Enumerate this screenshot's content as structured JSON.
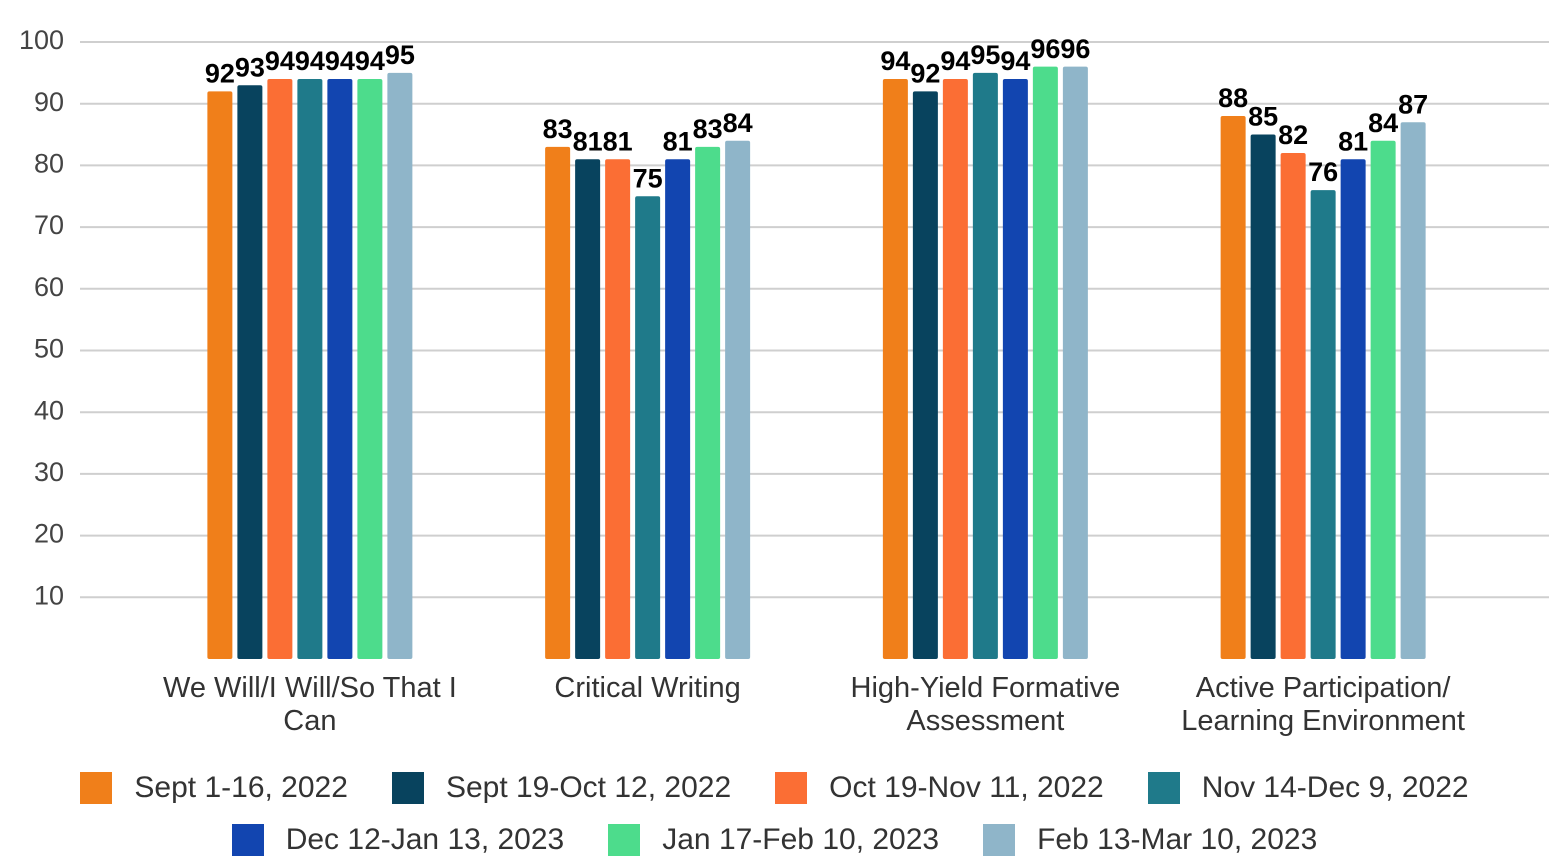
{
  "chart_data": {
    "type": "bar",
    "categories": [
      "We Will/I Will/So That I Can",
      "Critical Writing",
      "High-Yield Formative Assessment",
      "Active Participation/ Learning Environment"
    ],
    "series": [
      {
        "name": "Sept 1-16, 2022",
        "color": "#f07f1a",
        "values": [
          92,
          83,
          94,
          88
        ]
      },
      {
        "name": "Sept 19-Oct 12, 2022",
        "color": "#08435e",
        "values": [
          93,
          81,
          92,
          85
        ]
      },
      {
        "name": "Oct 19-Nov 11, 2022",
        "color": "#fb6e34",
        "values": [
          94,
          81,
          94,
          82
        ]
      },
      {
        "name": "Nov 14-Dec 9, 2022",
        "color": "#1f7a8a",
        "values": [
          94,
          75,
          95,
          76
        ]
      },
      {
        "name": "Dec 12-Jan 13, 2023",
        "color": "#1245b0",
        "values": [
          94,
          81,
          94,
          81
        ]
      },
      {
        "name": "Jan 17-Feb 10, 2023",
        "color": "#4ddc8c",
        "values": [
          94,
          83,
          96,
          84
        ]
      },
      {
        "name": "Feb 13-Mar 10, 2023",
        "color": "#8fb5c9",
        "values": [
          95,
          84,
          96,
          87
        ]
      }
    ],
    "ylim": [
      0,
      100
    ],
    "yticks": [
      10,
      20,
      30,
      40,
      50,
      60,
      70,
      80,
      90,
      100
    ],
    "grid": true,
    "legend": "bottom"
  }
}
